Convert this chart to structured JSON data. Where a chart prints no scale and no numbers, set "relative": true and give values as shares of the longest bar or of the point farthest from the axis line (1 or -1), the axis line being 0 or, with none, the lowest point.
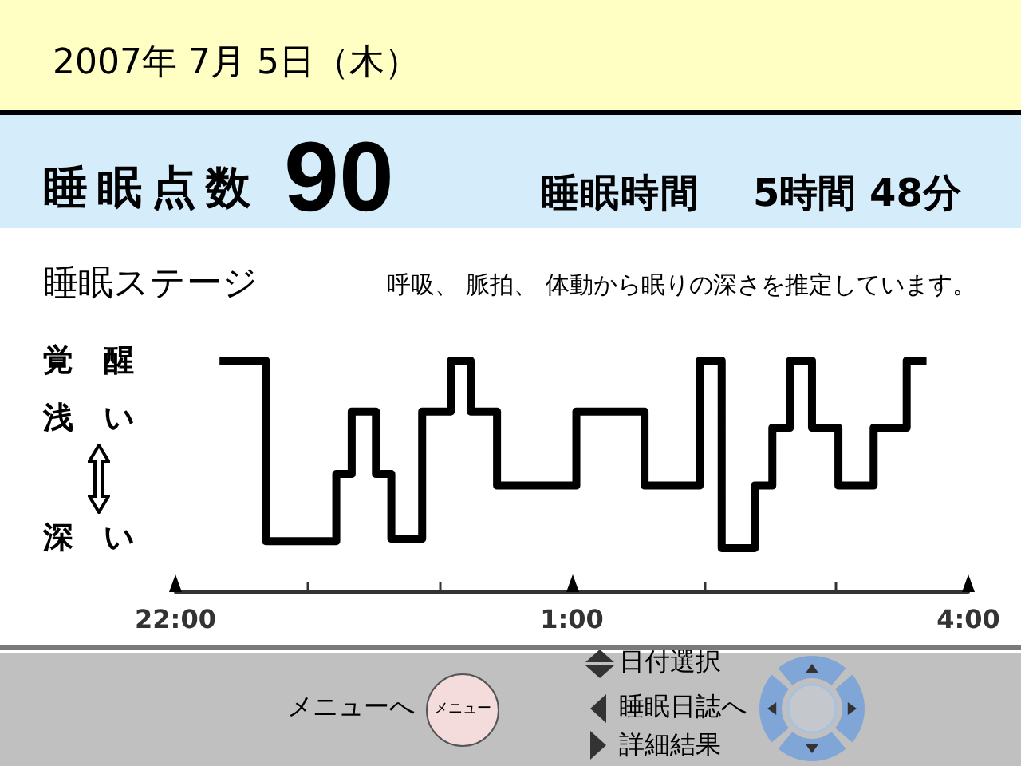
{
  "chart_data": {
    "type": "step",
    "title": "睡眠ステージ",
    "subtitle": "呼吸、 脈拍、 体動から眠りの深さを推定しています。",
    "x": [
      "2007-07-04T22:20",
      "2007-07-04T22:41",
      "2007-07-04T23:13",
      "2007-07-04T23:20",
      "2007-07-04T23:31",
      "2007-07-04T23:38",
      "2007-07-04T23:52",
      "2007-07-05T00:05",
      "2007-07-05T00:14",
      "2007-07-05T00:26",
      "2007-07-05T01:02",
      "2007-07-05T01:33",
      "2007-07-05T01:58",
      "2007-07-05T02:08",
      "2007-07-05T02:23",
      "2007-07-05T02:31",
      "2007-07-05T02:39",
      "2007-07-05T02:49",
      "2007-07-05T03:01",
      "2007-07-05T03:17",
      "2007-07-05T03:32",
      "2007-07-05T03:41"
    ],
    "values": [
      1.0,
      0.22,
      0.51,
      0.78,
      0.51,
      0.23,
      0.78,
      1.0,
      0.78,
      0.46,
      0.78,
      0.46,
      1.0,
      0.19,
      0.46,
      0.71,
      1.0,
      0.71,
      0.46,
      0.71,
      1.0,
      1.0
    ],
    "color": "#000000",
    "relative": true,
    "xlim": [
      "2007-07-04T22:00",
      "2007-07-05T04:00"
    ],
    "xticks": [
      {
        "value": "2007-07-04T22:00",
        "label": "22:00"
      },
      {
        "value": "2007-07-04T23:00",
        "label": null
      },
      {
        "value": "2007-07-05T00:00",
        "label": null
      },
      {
        "value": "2007-07-05T01:00",
        "label": "1:00"
      },
      {
        "value": "2007-07-05T02:00",
        "label": null
      },
      {
        "value": "2007-07-05T03:00",
        "label": null
      },
      {
        "value": "2007-07-05T04:00",
        "label": "4:00"
      }
    ],
    "annotations": [
      "2007年 7月 5日（木）",
      "睡眠点数",
      "90",
      "睡眠時間",
      "5時間 48分",
      "メニューへ",
      "メニュー",
      "日付選択",
      "睡眠日誌へ",
      "詳細結果",
      "覚　醒",
      "浅　い",
      "深　い"
    ]
  }
}
